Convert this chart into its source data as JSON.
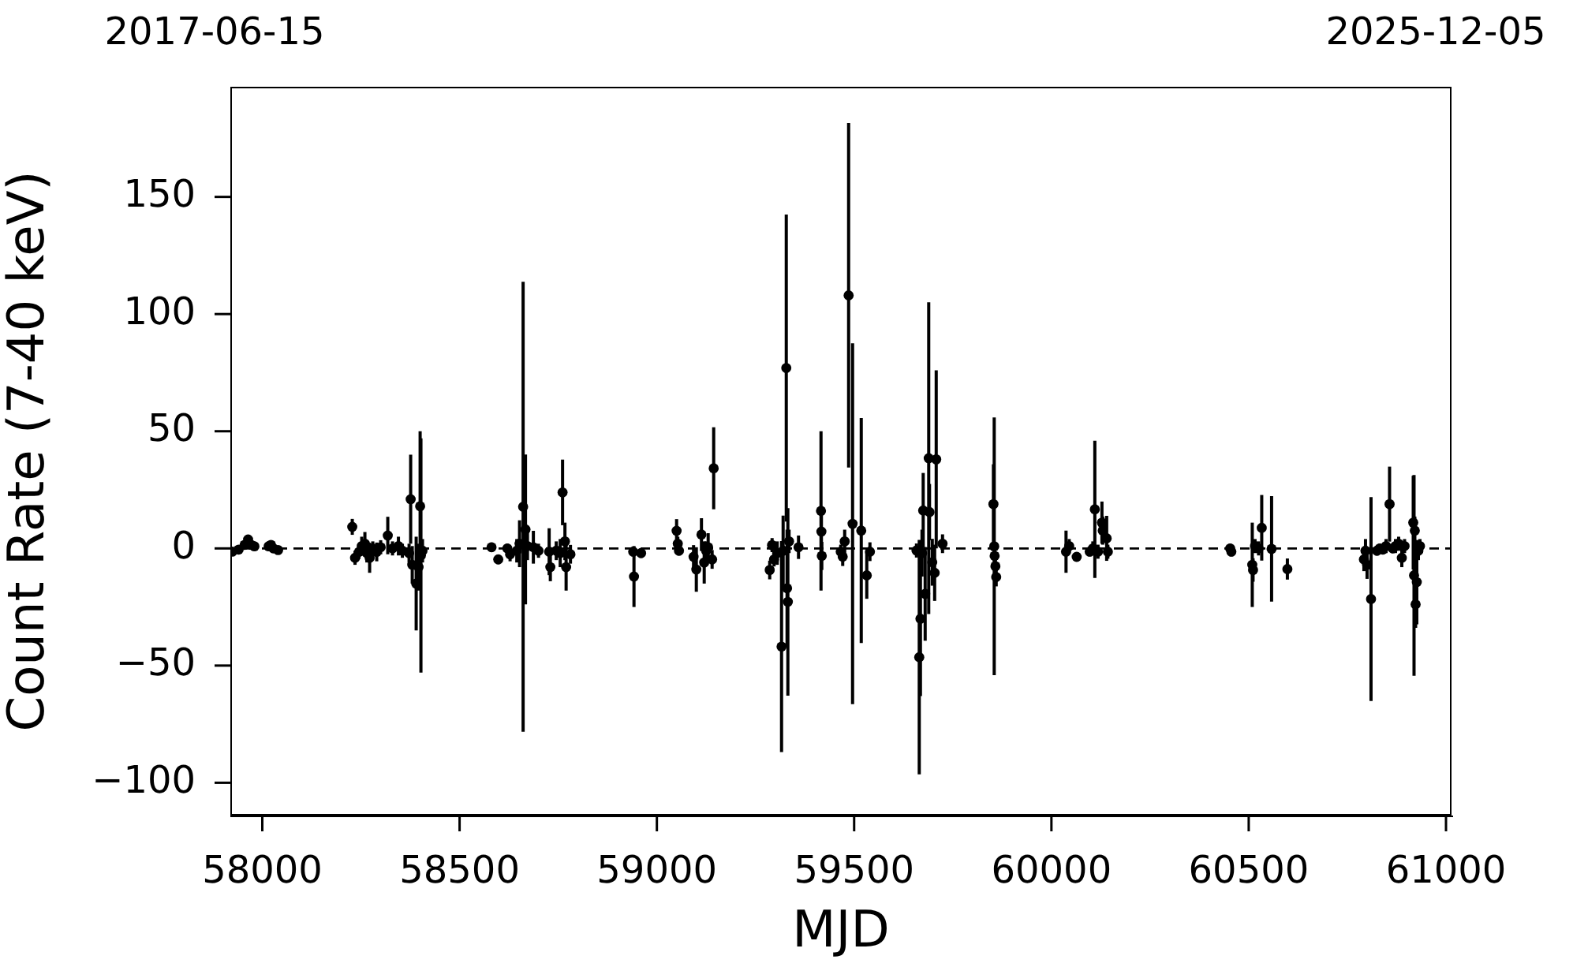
{
  "chart_data": {
    "type": "scatter",
    "xlabel": "MJD",
    "ylabel": "Count Rate (7-40 keV)",
    "xlim": [
      57919,
      61014
    ],
    "ylim": [
      -114,
      197
    ],
    "xticks": [
      58000,
      58500,
      59000,
      59500,
      60000,
      60500,
      61000
    ],
    "yticks": [
      -100,
      -50,
      0,
      50,
      100,
      150
    ],
    "marker": "circle",
    "ref_lines": [
      {
        "axis": "y",
        "value": 0,
        "color": "#000000",
        "line_style": "dashed"
      }
    ],
    "annotations": [
      "2017-06-15",
      "2025-12-05"
    ],
    "series": [
      {
        "color": "#000000",
        "x": [
          57924,
          57940,
          57955,
          57964,
          57972,
          57980,
          58016,
          58022,
          58028,
          58040,
          58228,
          58235,
          58245,
          58252,
          58260,
          58265,
          58272,
          58280,
          58290,
          58300,
          58318,
          58330,
          58345,
          58355,
          58372,
          58376,
          58380,
          58390,
          58396,
          58400,
          58402,
          58406,
          58581,
          58598,
          58621,
          58628,
          58645,
          58652,
          58661,
          58667,
          58672,
          58687,
          58700,
          58727,
          58730,
          58745,
          58755,
          58761,
          58767,
          58770,
          58781,
          58940,
          58942,
          58960,
          59050,
          59053,
          59056,
          59093,
          59100,
          59113,
          59120,
          59125,
          59130,
          59140,
          59144,
          59286,
          59292,
          59297,
          59305,
          59316,
          59320,
          59328,
          59330,
          59332,
          59335,
          59359,
          59416,
          59417,
          59418,
          59466,
          59471,
          59476,
          59486,
          59496,
          59518,
          59532,
          59540,
          59658,
          59665,
          59668,
          59672,
          59675,
          59680,
          59689,
          59691,
          59698,
          59704,
          59708,
          59724,
          59853,
          59855,
          59856,
          59858,
          59860,
          60037,
          60045,
          60064,
          60097,
          60105,
          60110,
          60118,
          60128,
          60130,
          60140,
          60143,
          60453,
          60456,
          60509,
          60511,
          60516,
          60525,
          60533,
          60558,
          60598,
          60792,
          60796,
          60800,
          60810,
          60825,
          60832,
          60840,
          60848,
          60857,
          60865,
          60872,
          60880,
          60888,
          60895,
          60917,
          60919,
          60921,
          60923,
          60926,
          60930,
          60934
        ],
        "values": [
          -1.4,
          -0.5,
          1.5,
          3.8,
          1.5,
          0.9,
          0.9,
          1.5,
          0,
          -0.7,
          9.2,
          -4,
          -1.5,
          1,
          2,
          -2,
          -4,
          0,
          -1.5,
          0.5,
          5.5,
          0,
          1,
          -1,
          -2,
          21,
          -7,
          -15,
          -8,
          18,
          -3,
          -1,
          0.5,
          -4.7,
          0,
          -2.5,
          -1,
          2,
          17.8,
          8.1,
          1,
          0.5,
          -1,
          -1.4,
          -8,
          -1,
          -2,
          23.9,
          3,
          -8,
          -2.5,
          -1.4,
          -12,
          -2,
          7.5,
          2,
          -1,
          -3.6,
          -9,
          5.9,
          -6,
          -1,
          0.5,
          -4.7,
          34.2,
          -9.2,
          1.4,
          -4.7,
          -2,
          -41.9,
          -1,
          77,
          -17,
          -22.8,
          3,
          0.5,
          16,
          7.2,
          -3.2,
          -1.4,
          -3.5,
          3,
          108,
          10.5,
          7.6,
          -11.5,
          -1.4,
          -0.9,
          -46.4,
          -30,
          -2,
          16.2,
          -19.4,
          38.5,
          15.5,
          -5.9,
          -10.4,
          38,
          2,
          18.9,
          0.9,
          -3.2,
          -7.6,
          -12.2,
          -1.4,
          1,
          -3.6,
          -1.4,
          0,
          16.7,
          -1.4,
          11,
          7.6,
          4.3,
          -1.4,
          0,
          -1.4,
          -7,
          -9.2,
          1,
          0,
          8.8,
          -0.2,
          -8.8,
          -4.7,
          -1,
          -7,
          -21.6,
          -1,
          0,
          -0.5,
          1,
          18.9,
          0,
          1,
          2,
          -4,
          1,
          11,
          -11.5,
          7.6,
          -23.9,
          -14.4,
          -1,
          1
        ],
        "errors": [
          1,
          1,
          1,
          1.2,
          1,
          1,
          1,
          1,
          1,
          1,
          3.4,
          3,
          3,
          4,
          5,
          4,
          6.4,
          3,
          4,
          3,
          8,
          3,
          4,
          3,
          4,
          19,
          8,
          20,
          10,
          32,
          50,
          5,
          2,
          2,
          2,
          3,
          5,
          10,
          96,
          32,
          6,
          7,
          3,
          10,
          6,
          4,
          6,
          14,
          8,
          10,
          4,
          2,
          13,
          2,
          5,
          3,
          2,
          5,
          9.5,
          7,
          9,
          4,
          6,
          4,
          17.5,
          4,
          3,
          3,
          5,
          45,
          15,
          65.5,
          25,
          40,
          5,
          5,
          34,
          8,
          6,
          3,
          4,
          5,
          73.5,
          77,
          48,
          10,
          4,
          3,
          50,
          33,
          10,
          16,
          20,
          66.5,
          12,
          10,
          12,
          38,
          4,
          17,
          55,
          4,
          4,
          4,
          9,
          3,
          2,
          2,
          3,
          29.3,
          3,
          9,
          6,
          9.6,
          3,
          2,
          2,
          18,
          5,
          3,
          3,
          14,
          22.5,
          4.5,
          5,
          5,
          6,
          43.5,
          2,
          2,
          2,
          3,
          16,
          2,
          3,
          3,
          4,
          3,
          20,
          42.8,
          6,
          10,
          18,
          4,
          3
        ]
      }
    ]
  }
}
